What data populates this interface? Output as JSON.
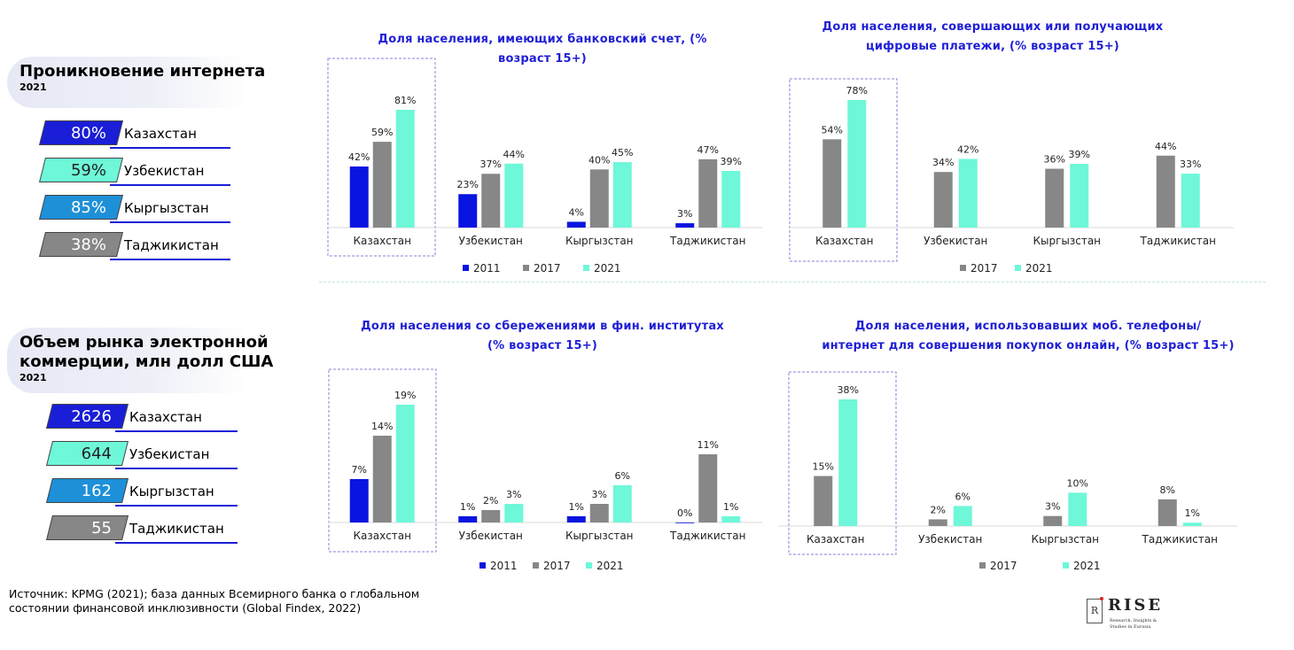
{
  "colors": {
    "c2011": "#0a14e0",
    "c2017": "#878787",
    "c2021": "#6ef7d8",
    "title_blue": "#1f1fd6"
  },
  "internet": {
    "title": "Проникновение интернета",
    "year": "2021",
    "rows": [
      {
        "value": "80%",
        "country": "Казахстан",
        "color": "#1a1ed6",
        "text_color": "#ffffff"
      },
      {
        "value": "59%",
        "country": "Узбекистан",
        "color": "#6ef7d8",
        "text_color": "#222222"
      },
      {
        "value": "85%",
        "country": "Кыргызстан",
        "color": "#1e90d8",
        "text_color": "#ffffff"
      },
      {
        "value": "38%",
        "country": "Таджикистан",
        "color": "#878787",
        "text_color": "#ffffff"
      }
    ]
  },
  "ecommerce": {
    "title_line1": "Объем рынка электронной",
    "title_line2": "коммерции, млн долл США",
    "year": "2021",
    "rows": [
      {
        "value": "2626",
        "country": "Казахстан",
        "color": "#1a1ed6",
        "text_color": "#ffffff"
      },
      {
        "value": "644",
        "country": "Узбекистан",
        "color": "#6ef7d8",
        "text_color": "#222222"
      },
      {
        "value": "162",
        "country": "Кыргызстан",
        "color": "#1e90d8",
        "text_color": "#ffffff"
      },
      {
        "value": "55",
        "country": "Таджикистан",
        "color": "#878787",
        "text_color": "#ffffff"
      }
    ]
  },
  "source": {
    "line1": "Источник: KPMG (2021); база данных Всемирного банка о глобальном",
    "line2": "состоянии финансовой инклюзивности (Global Findex, 2022)"
  },
  "logo": {
    "mark": "R",
    "name": "RISE",
    "tagline1": "Research, Insights &",
    "tagline2": "Studies in Eurasia"
  },
  "chart_titles": {
    "c1": [
      "Доля населения, имеющих банковский счет, (%",
      "возраст 15+)"
    ],
    "c2": [
      "Доля населения, совершающих или получающих",
      "цифровые платежи, (% возраст 15+)"
    ],
    "c3": [
      "Доля населения со сбережениями в фин. институтах",
      "(% возраст 15+)"
    ],
    "c4": [
      "Доля населения, использовавших моб. телефоны/",
      "интернет для совершения покупок онлайн, (% возраст 15+)"
    ]
  },
  "chart_data": [
    {
      "type": "bar",
      "title": "Доля населения, имеющих банковский счет, (% возраст 15+)",
      "categories": [
        "Казахстан",
        "Узбекистан",
        "Кыргызстан",
        "Таджикистан"
      ],
      "series": [
        {
          "name": "2011",
          "values": [
            42,
            23,
            4,
            3
          ]
        },
        {
          "name": "2017",
          "values": [
            59,
            37,
            40,
            47
          ]
        },
        {
          "name": "2021",
          "values": [
            81,
            44,
            45,
            39
          ]
        }
      ],
      "value_suffix": "%",
      "legend_position": "bottom",
      "grid": false,
      "highlight_category": "Казахстан"
    },
    {
      "type": "bar",
      "title": "Доля населения, совершающих или получающих цифровые платежи, (% возраст 15+)",
      "categories": [
        "Казахстан",
        "Узбекистан",
        "Кыргызстан",
        "Таджикистан"
      ],
      "series": [
        {
          "name": "2017",
          "values": [
            54,
            34,
            36,
            44
          ]
        },
        {
          "name": "2021",
          "values": [
            78,
            42,
            39,
            33
          ]
        }
      ],
      "value_suffix": "%",
      "legend_position": "bottom",
      "grid": false,
      "highlight_category": "Казахстан"
    },
    {
      "type": "bar",
      "title": "Доля населения со сбережениями в фин. институтах (% возраст 15+)",
      "categories": [
        "Казахстан",
        "Узбекистан",
        "Кыргызстан",
        "Таджикистан"
      ],
      "series": [
        {
          "name": "2011",
          "values": [
            7,
            1,
            1,
            0
          ]
        },
        {
          "name": "2017",
          "values": [
            14,
            2,
            3,
            11
          ]
        },
        {
          "name": "2021",
          "values": [
            19,
            3,
            6,
            1
          ]
        }
      ],
      "value_suffix": "%",
      "legend_position": "bottom",
      "grid": false,
      "highlight_category": "Казахстан"
    },
    {
      "type": "bar",
      "title": "Доля населения, использовавших моб. телефоны/ интернет для совершения покупок онлайн, (% возраст 15+)",
      "categories": [
        "Казахстан",
        "Узбекистан",
        "Кыргызстан",
        "Таджикистан"
      ],
      "series": [
        {
          "name": "2017",
          "values": [
            15,
            2,
            3,
            8
          ]
        },
        {
          "name": "2021",
          "values": [
            38,
            6,
            10,
            1
          ]
        }
      ],
      "value_suffix": "%",
      "legend_position": "bottom",
      "grid": false,
      "highlight_category": "Казахстан"
    }
  ]
}
